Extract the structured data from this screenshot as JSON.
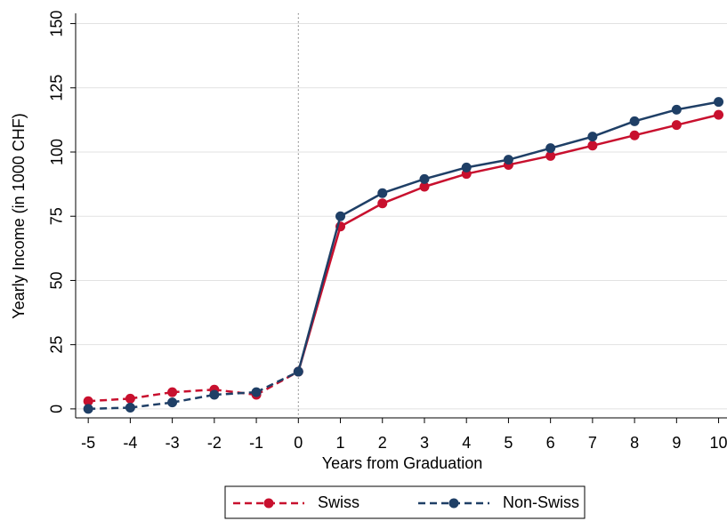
{
  "chart_data": {
    "type": "line",
    "xlabel": "Years from Graduation",
    "ylabel": "Yearly Income (in 1000 CHF)",
    "x": [
      -5,
      -4,
      -3,
      -2,
      -1,
      0,
      1,
      2,
      3,
      4,
      5,
      6,
      7,
      8,
      9,
      10
    ],
    "series": [
      {
        "name": "Swiss",
        "color": "#c8102e",
        "values": [
          3,
          4,
          6.5,
          7.5,
          5.5,
          14.5,
          71,
          80,
          86.5,
          91.5,
          95,
          98.5,
          102.5,
          106.5,
          110.5,
          114.5
        ]
      },
      {
        "name": "Non-Swiss",
        "color": "#1f3f66",
        "values": [
          0,
          0.5,
          2.5,
          5.5,
          6.5,
          14.5,
          75,
          84,
          89.5,
          94,
          97,
          101.5,
          106,
          112,
          116.5,
          119.5
        ]
      }
    ],
    "xlim": [
      -5.3,
      10.2
    ],
    "ylim": [
      -3.5,
      154
    ],
    "xticks": [
      -5,
      -4,
      -3,
      -2,
      -1,
      0,
      1,
      2,
      3,
      4,
      5,
      6,
      7,
      8,
      9,
      10
    ],
    "yticks": [
      0,
      25,
      50,
      75,
      100,
      125,
      150
    ],
    "grid": true,
    "vline": 0,
    "legend": "bottom"
  }
}
